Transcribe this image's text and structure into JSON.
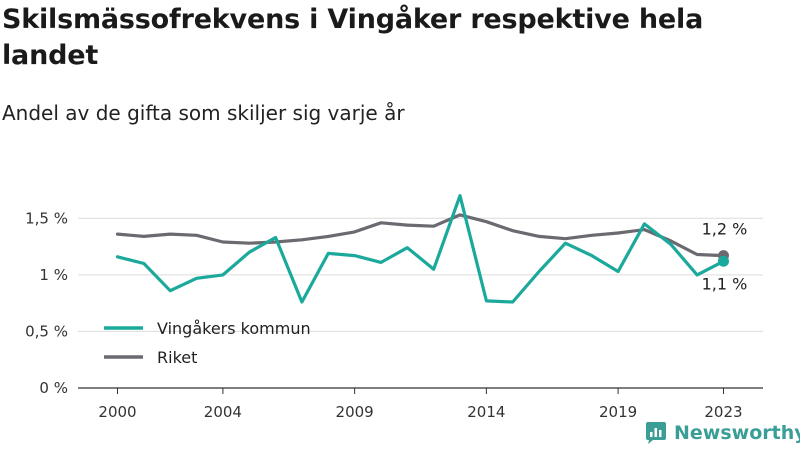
{
  "header": {
    "title": "Skilsmässofrekvens i Vingåker respektive hela landet",
    "subtitle": "Andel av de gifta som skiljer sig varje år"
  },
  "brand": {
    "name": "Newsworthy",
    "logo_icon": "newsworthy-chart-logo-icon",
    "color": "#3a9e97"
  },
  "chart_data": {
    "type": "line",
    "x": [
      2000,
      2001,
      2002,
      2003,
      2004,
      2005,
      2006,
      2007,
      2008,
      2009,
      2010,
      2011,
      2012,
      2013,
      2014,
      2015,
      2016,
      2017,
      2018,
      2019,
      2020,
      2021,
      2022,
      2023
    ],
    "x_ticks": [
      2000,
      2004,
      2009,
      2014,
      2019,
      2023
    ],
    "x_tick_labels": [
      "2000",
      "2004",
      "2009",
      "2014",
      "2019",
      "2023"
    ],
    "y_ticks": [
      0,
      0.5,
      1,
      1.5
    ],
    "y_tick_labels": [
      "0 %",
      "0,5 %",
      "1 %",
      "1,5 %"
    ],
    "ylim": [
      0,
      1.75
    ],
    "grid": true,
    "legend_position": "bottom-left",
    "series": [
      {
        "name": "Vingåkers kommun",
        "color": "#1aa99b",
        "values": [
          1.16,
          1.1,
          0.86,
          0.97,
          1.0,
          1.2,
          1.33,
          0.76,
          1.19,
          1.17,
          1.11,
          1.24,
          1.05,
          1.7,
          0.77,
          0.76,
          1.03,
          1.28,
          1.17,
          1.03,
          1.45,
          1.27,
          1.0,
          1.12
        ],
        "end_label": "1,1 %"
      },
      {
        "name": "Riket",
        "color": "#6b6a71",
        "values": [
          1.36,
          1.34,
          1.36,
          1.35,
          1.29,
          1.28,
          1.29,
          1.31,
          1.34,
          1.38,
          1.46,
          1.44,
          1.43,
          1.53,
          1.47,
          1.39,
          1.34,
          1.32,
          1.35,
          1.37,
          1.4,
          1.3,
          1.18,
          1.17
        ],
        "end_label": "1,2 %"
      }
    ]
  }
}
